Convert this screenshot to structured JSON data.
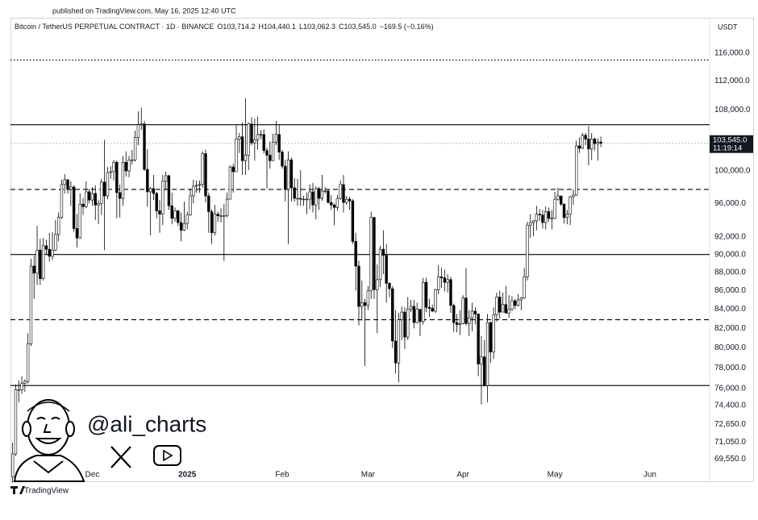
{
  "published": "published on TradingView.com, May 16, 2025 12:40 UTC",
  "watermark": {
    "handle": "@ali_charts"
  },
  "footer": {
    "brand": "TradingView"
  },
  "chart_data": {
    "type": "candlestick",
    "title": "Bitcoin / TetherUS PERPETUAL CONTRACT · 1D · BINANCE",
    "ohlc_labels": [
      "O103,714.2",
      "H104,440.1",
      "L103,062.3",
      "C103,545.0",
      "−169.5 (−0.16%)"
    ],
    "currency": "USDT",
    "log_scale": true,
    "grid": false,
    "up_color": "#ffffff",
    "down_color": "#000000",
    "outline_color": "#000000",
    "ylim": [
      68800,
      118500
    ],
    "yticks": [
      {
        "value": 116000,
        "label": "116,000.0"
      },
      {
        "value": 112000,
        "label": "112,000.0"
      },
      {
        "value": 108000,
        "label": "108,000.0"
      },
      {
        "value": 100000,
        "label": "100,000.0"
      },
      {
        "value": 96000,
        "label": "96,000.0"
      },
      {
        "value": 92000,
        "label": "92,000.0"
      },
      {
        "value": 90000,
        "label": "90,000.0"
      },
      {
        "value": 88000,
        "label": "88,000.0"
      },
      {
        "value": 86000,
        "label": "86,000.0"
      },
      {
        "value": 84000,
        "label": "84,000.0"
      },
      {
        "value": 82000,
        "label": "82,000.0"
      },
      {
        "value": 80000,
        "label": "80,000.0"
      },
      {
        "value": 78000,
        "label": "78,000.0"
      },
      {
        "value": 76000,
        "label": "76,000.0"
      },
      {
        "value": 74400,
        "label": "74,400.0"
      },
      {
        "value": 72650,
        "label": "72,650.0"
      },
      {
        "value": 71050,
        "label": "71,050.0"
      },
      {
        "value": 69550,
        "label": "69,550.0"
      }
    ],
    "xlim": [
      -0.7,
      227.5
    ],
    "xticks": [
      {
        "value": 26,
        "label": "Dec"
      },
      {
        "value": 57,
        "label": "2025"
      },
      {
        "value": 88,
        "label": "Feb"
      },
      {
        "value": 116,
        "label": "Mar"
      },
      {
        "value": 147,
        "label": "Apr"
      },
      {
        "value": 177,
        "label": "May"
      },
      {
        "value": 208,
        "label": "Jun"
      }
    ],
    "levels": [
      {
        "value": 115000,
        "style": "dotted"
      },
      {
        "value": 106000,
        "style": "solid"
      },
      {
        "value": 97700,
        "style": "dashed"
      },
      {
        "value": 90000,
        "style": "solid"
      },
      {
        "value": 82900,
        "style": "dashed"
      },
      {
        "value": 76300,
        "style": "solid"
      }
    ],
    "last_price_label": "103,545.0",
    "countdown": "11:19:14",
    "candles": [
      [
        68000,
        71000,
        67500,
        70000
      ],
      [
        70000,
        76400,
        69800,
        75900
      ],
      [
        75900,
        76800,
        74700,
        75900
      ],
      [
        75900,
        77200,
        75500,
        76500
      ],
      [
        76500,
        76900,
        75700,
        76700
      ],
      [
        76700,
        81500,
        76500,
        80400
      ],
      [
        80400,
        89500,
        80200,
        88700
      ],
      [
        88700,
        89900,
        85100,
        87900
      ],
      [
        87900,
        93300,
        86600,
        90500
      ],
      [
        90500,
        91800,
        86600,
        87300
      ],
      [
        87300,
        91900,
        87100,
        91000
      ],
      [
        91000,
        91700,
        90000,
        90600
      ],
      [
        90600,
        92500,
        89200,
        89800
      ],
      [
        89800,
        92600,
        89400,
        90500
      ],
      [
        90500,
        94000,
        90400,
        92300
      ],
      [
        92300,
        94900,
        91500,
        94300
      ],
      [
        94300,
        98900,
        94100,
        98300
      ],
      [
        98300,
        99600,
        97200,
        98900
      ],
      [
        98900,
        98900,
        97200,
        97700
      ],
      [
        97700,
        98700,
        95700,
        98000
      ],
      [
        98000,
        98200,
        92600,
        93000
      ],
      [
        93000,
        94700,
        90800,
        91900
      ],
      [
        91900,
        97200,
        91800,
        95900
      ],
      [
        95900,
        96600,
        94600,
        95600
      ],
      [
        95600,
        98700,
        95400,
        97400
      ],
      [
        97400,
        97800,
        96000,
        96400
      ],
      [
        96400,
        98000,
        95700,
        97200
      ],
      [
        97200,
        98200,
        94000,
        95800
      ],
      [
        95800,
        96400,
        93500,
        96000
      ],
      [
        96000,
        99000,
        94600,
        98600
      ],
      [
        98600,
        104000,
        90500,
        96900
      ],
      [
        96900,
        100500,
        96500,
        99800
      ],
      [
        99800,
        100600,
        99000,
        99900
      ],
      [
        99900,
        101400,
        98800,
        101100
      ],
      [
        101100,
        101300,
        94200,
        97300
      ],
      [
        97300,
        98300,
        94300,
        96600
      ],
      [
        96600,
        101900,
        95700,
        101100
      ],
      [
        101100,
        102500,
        99300,
        100000
      ],
      [
        100000,
        101900,
        99200,
        101400
      ],
      [
        101400,
        102700,
        100800,
        101400
      ],
      [
        101400,
        105200,
        101200,
        104300
      ],
      [
        104300,
        107800,
        103300,
        106000
      ],
      [
        106000,
        108300,
        105300,
        106100
      ],
      [
        106100,
        106500,
        100000,
        100200
      ],
      [
        100200,
        102800,
        95600,
        97400
      ],
      [
        97400,
        98000,
        92200,
        97800
      ],
      [
        97800,
        99500,
        96400,
        97200
      ],
      [
        97200,
        97400,
        94200,
        95100
      ],
      [
        95100,
        96400,
        92500,
        94700
      ],
      [
        94700,
        99500,
        93400,
        98700
      ],
      [
        98700,
        99900,
        97600,
        99400
      ],
      [
        99400,
        99500,
        95200,
        95700
      ],
      [
        95700,
        97300,
        93500,
        94200
      ],
      [
        94200,
        95500,
        93800,
        95100
      ],
      [
        95100,
        95200,
        93300,
        93700
      ],
      [
        93700,
        94900,
        91500,
        92800
      ],
      [
        92800,
        96200,
        92700,
        93600
      ],
      [
        93600,
        95000,
        92900,
        94600
      ],
      [
        94600,
        97800,
        94500,
        96900
      ],
      [
        96900,
        98900,
        96000,
        98100
      ],
      [
        98100,
        98800,
        97300,
        98200
      ],
      [
        98200,
        98800,
        97300,
        98300
      ],
      [
        98300,
        102500,
        97900,
        102200
      ],
      [
        102200,
        102700,
        96100,
        96900
      ],
      [
        96900,
        97300,
        92500,
        95000
      ],
      [
        95000,
        95300,
        91200,
        92500
      ],
      [
        92500,
        95800,
        92200,
        94700
      ],
      [
        94700,
        95000,
        93800,
        94500
      ],
      [
        94500,
        95400,
        93700,
        94500
      ],
      [
        94500,
        95900,
        89300,
        94500
      ],
      [
        94500,
        97300,
        94300,
        96500
      ],
      [
        96500,
        100700,
        96500,
        100500
      ],
      [
        100500,
        100900,
        97300,
        99900
      ],
      [
        99900,
        105900,
        99900,
        104100
      ],
      [
        104100,
        104900,
        102300,
        104400
      ],
      [
        104400,
        106300,
        99500,
        101300
      ],
      [
        101300,
        109600,
        99500,
        102000
      ],
      [
        102000,
        106300,
        100100,
        106100
      ],
      [
        106100,
        107000,
        103300,
        103600
      ],
      [
        103600,
        106800,
        101300,
        104000
      ],
      [
        104000,
        107100,
        102700,
        104700
      ],
      [
        104700,
        105300,
        104100,
        104700
      ],
      [
        104700,
        105400,
        102200,
        102600
      ],
      [
        102600,
        103000,
        97800,
        102000
      ],
      [
        102000,
        103800,
        100300,
        101300
      ],
      [
        101300,
        104800,
        101300,
        103700
      ],
      [
        103700,
        106500,
        103300,
        104700
      ],
      [
        104700,
        106000,
        101400,
        102400
      ],
      [
        102400,
        102700,
        100300,
        100600
      ],
      [
        100600,
        101400,
        96200,
        97700
      ],
      [
        97700,
        102500,
        91200,
        101400
      ],
      [
        101400,
        101700,
        96200,
        97900
      ],
      [
        97900,
        99100,
        96200,
        96600
      ],
      [
        96600,
        99000,
        95700,
        96600
      ],
      [
        96600,
        100100,
        95700,
        96500
      ],
      [
        96500,
        96900,
        95700,
        96500
      ],
      [
        96500,
        97300,
        94700,
        96500
      ],
      [
        96500,
        98300,
        95300,
        97400
      ],
      [
        97400,
        98500,
        94900,
        95800
      ],
      [
        95800,
        98100,
        94100,
        97800
      ],
      [
        97800,
        98000,
        95200,
        96600
      ],
      [
        96600,
        99500,
        96300,
        97500
      ],
      [
        97500,
        98000,
        97200,
        97500
      ],
      [
        97500,
        97700,
        96000,
        96100
      ],
      [
        96100,
        97000,
        95200,
        95800
      ],
      [
        95800,
        96000,
        93400,
        95500
      ],
      [
        95500,
        97000,
        95100,
        96600
      ],
      [
        96600,
        98800,
        96400,
        98300
      ],
      [
        98300,
        99500,
        94900,
        96100
      ],
      [
        96100,
        96900,
        95800,
        96500
      ],
      [
        96500,
        96800,
        95200,
        96300
      ],
      [
        96300,
        96500,
        91200,
        91500
      ],
      [
        91500,
        92500,
        86000,
        88700
      ],
      [
        88700,
        89300,
        82300,
        84300
      ],
      [
        84300,
        87100,
        82800,
        84700
      ],
      [
        84700,
        85100,
        78200,
        84400
      ],
      [
        84400,
        86500,
        83900,
        86000
      ],
      [
        86000,
        95000,
        85100,
        94300
      ],
      [
        94300,
        94400,
        85100,
        86100
      ],
      [
        86100,
        88900,
        81500,
        87200
      ],
      [
        87200,
        91000,
        86400,
        90600
      ],
      [
        90600,
        92800,
        87800,
        89900
      ],
      [
        89900,
        91200,
        84700,
        86800
      ],
      [
        86800,
        86900,
        85300,
        86200
      ],
      [
        86200,
        86500,
        80000,
        80700
      ],
      [
        80700,
        83900,
        77500,
        78500
      ],
      [
        78500,
        83600,
        76600,
        82900
      ],
      [
        82900,
        84300,
        80800,
        83700
      ],
      [
        83700,
        84200,
        79900,
        81100
      ],
      [
        81100,
        85300,
        80800,
        84000
      ],
      [
        84000,
        85000,
        83700,
        84300
      ],
      [
        84300,
        85000,
        82000,
        82600
      ],
      [
        82600,
        84700,
        82500,
        84000
      ],
      [
        84000,
        84000,
        81200,
        82700
      ],
      [
        82700,
        87400,
        82400,
        86900
      ],
      [
        86900,
        87400,
        83700,
        84200
      ],
      [
        84200,
        85100,
        83200,
        84100
      ],
      [
        84100,
        84500,
        83700,
        83800
      ],
      [
        83800,
        86200,
        83600,
        86100
      ],
      [
        86100,
        88800,
        85600,
        87500
      ],
      [
        87500,
        88500,
        86300,
        87400
      ],
      [
        87400,
        88300,
        85900,
        86900
      ],
      [
        86900,
        87800,
        85800,
        87200
      ],
      [
        87200,
        87500,
        83600,
        84400
      ],
      [
        84400,
        84600,
        81600,
        82600
      ],
      [
        82600,
        83500,
        81600,
        82400
      ],
      [
        82400,
        83900,
        81300,
        82500
      ],
      [
        82500,
        85500,
        82400,
        85200
      ],
      [
        85200,
        88500,
        82300,
        82500
      ],
      [
        82500,
        83900,
        81200,
        83100
      ],
      [
        83100,
        84700,
        81700,
        83800
      ],
      [
        83800,
        84200,
        82400,
        83500
      ],
      [
        83500,
        83500,
        77200,
        78400
      ],
      [
        78400,
        81200,
        74500,
        79100
      ],
      [
        79100,
        80800,
        76200,
        76300
      ],
      [
        76300,
        83500,
        74700,
        82600
      ],
      [
        82600,
        82700,
        78500,
        79600
      ],
      [
        79600,
        84200,
        78900,
        83400
      ],
      [
        83400,
        85800,
        82700,
        85300
      ],
      [
        85300,
        86000,
        83000,
        83700
      ],
      [
        83700,
        85800,
        83700,
        84500
      ],
      [
        84500,
        86500,
        83600,
        83600
      ],
      [
        83600,
        85500,
        83100,
        84000
      ],
      [
        84000,
        85400,
        83800,
        84900
      ],
      [
        84900,
        85100,
        84000,
        84400
      ],
      [
        84400,
        85600,
        84300,
        85000
      ],
      [
        85000,
        85300,
        83900,
        85200
      ],
      [
        85200,
        88500,
        85100,
        87500
      ],
      [
        87500,
        93800,
        87100,
        93400
      ],
      [
        93400,
        94700,
        91900,
        93700
      ],
      [
        93700,
        94000,
        92100,
        93900
      ],
      [
        93900,
        95700,
        92800,
        94700
      ],
      [
        94700,
        95300,
        93900,
        94600
      ],
      [
        94600,
        95200,
        93000,
        93700
      ],
      [
        93700,
        95600,
        92900,
        95000
      ],
      [
        95000,
        95500,
        93800,
        94200
      ],
      [
        94200,
        95200,
        92900,
        94200
      ],
      [
        94200,
        97400,
        94100,
        96500
      ],
      [
        96500,
        97900,
        96300,
        96900
      ],
      [
        96900,
        96900,
        95700,
        95900
      ],
      [
        95900,
        96000,
        93600,
        94300
      ],
      [
        94300,
        95200,
        93500,
        94700
      ],
      [
        94700,
        96900,
        93400,
        96800
      ],
      [
        96800,
        97700,
        95800,
        97000
      ],
      [
        97000,
        103900,
        96900,
        103200
      ],
      [
        103200,
        104300,
        102300,
        102900
      ],
      [
        102900,
        104900,
        102800,
        104600
      ],
      [
        104600,
        104900,
        103300,
        104100
      ],
      [
        104100,
        105800,
        100700,
        102800
      ],
      [
        102800,
        104900,
        101400,
        104100
      ],
      [
        104100,
        104300,
        102600,
        103500
      ],
      [
        103500,
        104200,
        101300,
        103700
      ],
      [
        103714.2,
        104440.1,
        103062.3,
        103545.0
      ]
    ]
  }
}
